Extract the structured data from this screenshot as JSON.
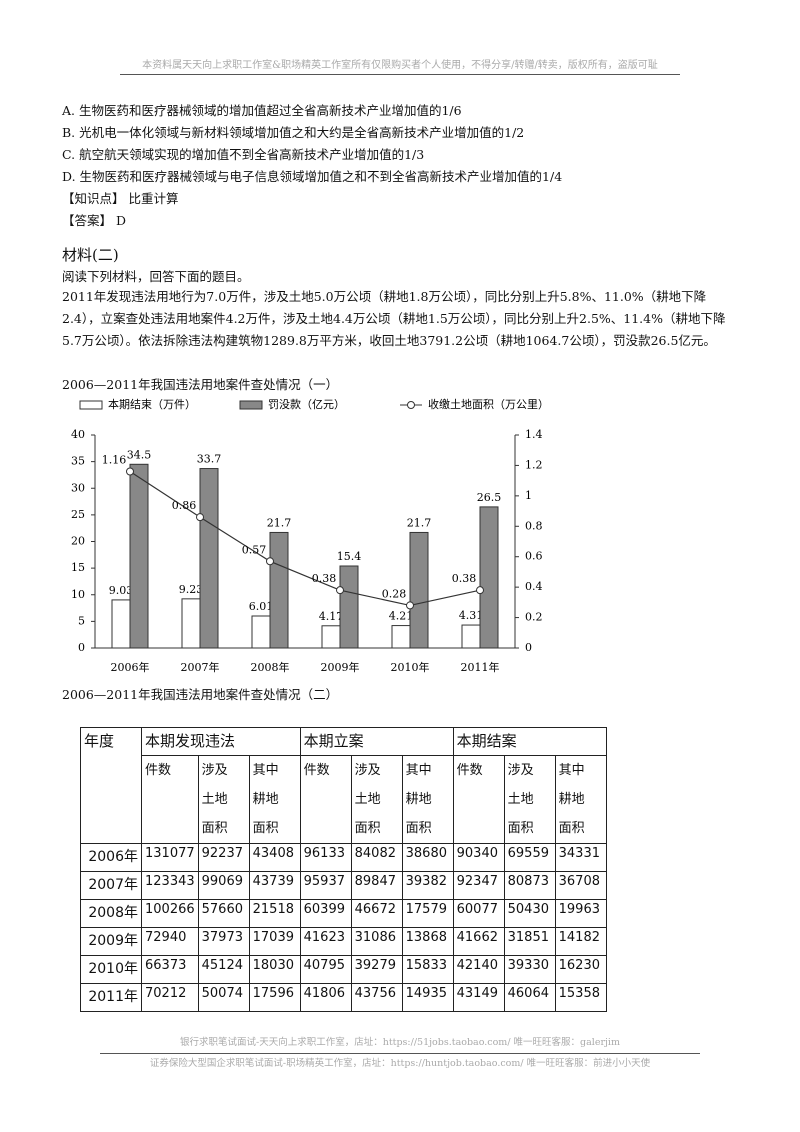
{
  "header": {
    "notice": "本资料属天天向上求职工作室&职场精英工作室所有仅限购买者个人使用，不得分享/转赠/转卖，版权所有，盗版可耻"
  },
  "options": [
    "A. 生物医药和医疗器械领域的增加值超过全省高新技术产业增加值的1/6",
    "B. 光机电一体化领域与新材料领域增加值之和大约是全省高新技术产业增加值的1/2",
    "C. 航空航天领域实现的增加值不到全省高新技术产业增加值的1/3",
    "D. 生物医药和医疗器械领域与电子信息领域增加值之和不到全省高新技术产业增加值的1/4"
  ],
  "knowledge_point": {
    "label": "【知识点】",
    "text": "比重计算"
  },
  "answer": {
    "label": "【答案】",
    "text": "D"
  },
  "material": {
    "heading": "材料(二)",
    "instruction": "阅读下列材料，回答下面的题目。",
    "paragraph": "2011年发现违法用地行为7.0万件，涉及土地5.0万公顷（耕地1.8万公顷），同比分别上升5.8%、11.0%（耕地下降2.4），立案查处违法用地案件4.2万件，涉及土地4.4万公顷（耕地1.5万公顷），同比分别上升2.5%、11.4%（耕地下降5.7万公顷）。依法拆除违法构建筑物1289.8万平方米，收回土地3791.2公顷（耕地1064.7公顷），罚没款26.5亿元。"
  },
  "chart_data": {
    "type": "bar-line",
    "title": "2006—2011年我国违法用地案件查处情况（一）",
    "categories": [
      "2006年",
      "2007年",
      "2008年",
      "2009年",
      "2010年",
      "2011年"
    ],
    "series": [
      {
        "name": "本期结束（万件）",
        "type": "bar",
        "color": "#ffffff",
        "values": [
          9.03,
          9.23,
          6.01,
          4.17,
          4.21,
          4.31
        ]
      },
      {
        "name": "罚没款（亿元）",
        "type": "bar",
        "color": "#888888",
        "values": [
          34.5,
          33.7,
          21.7,
          15.4,
          21.7,
          26.5
        ]
      },
      {
        "name": "收缴土地面积（万公里）",
        "type": "line",
        "axis": "y2",
        "color": "#333333",
        "values": [
          1.16,
          0.86,
          0.57,
          0.38,
          0.28,
          0.38
        ]
      }
    ],
    "ylim": [
      0,
      40
    ],
    "yticks": [
      0,
      5,
      10,
      15,
      20,
      25,
      30,
      35,
      40
    ],
    "y2lim": [
      0,
      1.4
    ],
    "y2ticks": [
      0,
      0.2,
      0.4,
      0.6,
      0.8,
      1,
      1.2,
      1.4
    ]
  },
  "table": {
    "title": "2006—2011年我国违法用地案件查处情况（二）",
    "header_groups": [
      "年度",
      "本期发现违法",
      "本期立案",
      "本期结案"
    ],
    "sub_headers": [
      "件数",
      "涉及土地面积",
      "其中耕地面积",
      "件数",
      "涉及土地面积",
      "其中耕地面积",
      "件数",
      "涉及土地面积",
      "其中耕地面积"
    ],
    "rows": [
      [
        "2006年",
        131077,
        92237,
        43408,
        96133,
        84082,
        38680,
        90340,
        69559,
        34331
      ],
      [
        "2007年",
        123343,
        99069,
        43739,
        95937,
        89847,
        39382,
        92347,
        80873,
        36708
      ],
      [
        "2008年",
        100266,
        57660,
        21518,
        60399,
        46672,
        17579,
        60077,
        50430,
        19963
      ],
      [
        "2009年",
        72940,
        37973,
        17039,
        41623,
        31086,
        13868,
        41662,
        31851,
        14182
      ],
      [
        "2010年",
        66373,
        45124,
        18030,
        40795,
        39279,
        15833,
        42140,
        39330,
        16230
      ],
      [
        "2011年",
        70212,
        50074,
        17596,
        41806,
        43756,
        14935,
        43149,
        46064,
        15358
      ]
    ]
  },
  "footer": {
    "lines": [
      "银行求职笔试面试-天天向上求职工作室，店址：https://51jobs.taobao.com/ 唯一旺旺客服：galerjim",
      "证券保险大型国企求职笔试面试-职场精英工作室，店址：https://huntjob.taobao.com/ 唯一旺旺客服：前进小小天使"
    ]
  }
}
